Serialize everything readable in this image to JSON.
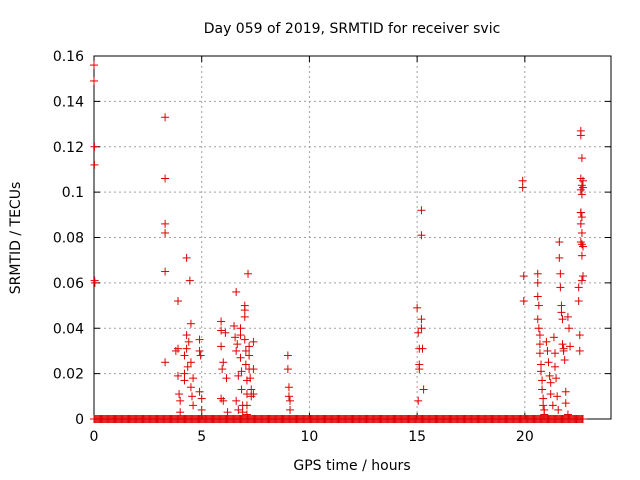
{
  "chart_data": {
    "type": "scatter",
    "title": "Day 059 of 2019, SRMTID for receiver svic",
    "xlabel": "GPS time / hours",
    "ylabel": "SRMTID / TECUs",
    "xlim": [
      0,
      24
    ],
    "ylim": [
      0,
      0.16
    ],
    "grid": true,
    "marker": "plus",
    "color": "#dd0000",
    "xticks": [
      "0",
      "5",
      "10",
      "15",
      "20"
    ],
    "yticks": [
      "0",
      "0.02",
      "0.04",
      "0.06",
      "0.08",
      "0.1",
      "0.12",
      "0.14",
      "0.16"
    ],
    "baseline": {
      "x_start": 0,
      "x_end": 22.7,
      "y": 0
    },
    "points": [
      [
        0.0,
        0.156
      ],
      [
        0.0,
        0.149
      ],
      [
        0.02,
        0.12
      ],
      [
        0.02,
        0.112
      ],
      [
        0.03,
        0.061
      ],
      [
        0.04,
        0.06
      ],
      [
        3.3,
        0.133
      ],
      [
        3.3,
        0.106
      ],
      [
        3.3,
        0.086
      ],
      [
        3.3,
        0.082
      ],
      [
        3.3,
        0.065
      ],
      [
        3.3,
        0.025
      ],
      [
        3.8,
        0.03
      ],
      [
        3.9,
        0.052
      ],
      [
        3.9,
        0.031
      ],
      [
        3.9,
        0.019
      ],
      [
        3.95,
        0.011
      ],
      [
        4.0,
        0.008
      ],
      [
        4.0,
        0.003
      ],
      [
        4.2,
        0.028
      ],
      [
        4.2,
        0.02
      ],
      [
        4.2,
        0.017
      ],
      [
        4.3,
        0.071
      ],
      [
        4.3,
        0.037
      ],
      [
        4.3,
        0.031
      ],
      [
        4.35,
        0.023
      ],
      [
        4.4,
        0.034
      ],
      [
        4.45,
        0.061
      ],
      [
        4.5,
        0.042
      ],
      [
        4.5,
        0.025
      ],
      [
        4.5,
        0.014
      ],
      [
        4.55,
        0.01
      ],
      [
        4.6,
        0.018
      ],
      [
        4.6,
        0.006
      ],
      [
        4.9,
        0.035
      ],
      [
        4.9,
        0.03
      ],
      [
        4.95,
        0.028
      ],
      [
        4.9,
        0.012
      ],
      [
        5.0,
        0.009
      ],
      [
        5.0,
        0.004
      ],
      [
        5.9,
        0.043
      ],
      [
        5.9,
        0.039
      ],
      [
        5.9,
        0.032
      ],
      [
        6.0,
        0.025
      ],
      [
        5.95,
        0.022
      ],
      [
        5.9,
        0.009
      ],
      [
        6.0,
        0.008
      ],
      [
        6.1,
        0.038
      ],
      [
        6.15,
        0.018
      ],
      [
        6.2,
        0.003
      ],
      [
        6.5,
        0.041
      ],
      [
        6.55,
        0.036
      ],
      [
        6.6,
        0.056
      ],
      [
        6.6,
        0.03
      ],
      [
        6.6,
        0.008
      ],
      [
        6.65,
        0.033
      ],
      [
        6.7,
        0.019
      ],
      [
        6.7,
        0.004
      ],
      [
        6.8,
        0.04
      ],
      [
        6.8,
        0.037
      ],
      [
        6.8,
        0.027
      ],
      [
        6.85,
        0.021
      ],
      [
        6.85,
        0.013
      ],
      [
        6.9,
        0.006
      ],
      [
        6.9,
        0.003
      ],
      [
        7.0,
        0.05
      ],
      [
        7.0,
        0.048
      ],
      [
        7.0,
        0.045
      ],
      [
        7.0,
        0.035
      ],
      [
        7.05,
        0.03
      ],
      [
        7.05,
        0.024
      ],
      [
        7.1,
        0.017
      ],
      [
        7.1,
        0.011
      ],
      [
        7.1,
        0.006
      ],
      [
        7.1,
        0.002
      ],
      [
        7.15,
        0.064
      ],
      [
        7.2,
        0.032
      ],
      [
        7.2,
        0.028
      ],
      [
        7.2,
        0.022
      ],
      [
        7.25,
        0.018
      ],
      [
        7.3,
        0.013
      ],
      [
        7.3,
        0.01
      ],
      [
        7.4,
        0.034
      ],
      [
        7.4,
        0.022
      ],
      [
        7.4,
        0.011
      ],
      [
        9.0,
        0.028
      ],
      [
        9.0,
        0.022
      ],
      [
        9.05,
        0.014
      ],
      [
        9.05,
        0.01
      ],
      [
        9.1,
        0.008
      ],
      [
        9.1,
        0.004
      ],
      [
        15.0,
        0.049
      ],
      [
        15.05,
        0.038
      ],
      [
        15.1,
        0.031
      ],
      [
        15.1,
        0.024
      ],
      [
        15.1,
        0.022
      ],
      [
        15.05,
        0.008
      ],
      [
        15.2,
        0.092
      ],
      [
        15.2,
        0.081
      ],
      [
        15.2,
        0.044
      ],
      [
        15.2,
        0.04
      ],
      [
        15.25,
        0.031
      ],
      [
        15.3,
        0.013
      ],
      [
        19.9,
        0.105
      ],
      [
        19.9,
        0.102
      ],
      [
        19.95,
        0.063
      ],
      [
        19.95,
        0.052
      ],
      [
        20.6,
        0.064
      ],
      [
        20.6,
        0.06
      ],
      [
        20.6,
        0.054
      ],
      [
        20.65,
        0.05
      ],
      [
        20.6,
        0.044
      ],
      [
        20.65,
        0.04
      ],
      [
        20.7,
        0.037
      ],
      [
        20.7,
        0.033
      ],
      [
        20.7,
        0.029
      ],
      [
        20.75,
        0.024
      ],
      [
        20.75,
        0.021
      ],
      [
        20.8,
        0.017
      ],
      [
        20.8,
        0.013
      ],
      [
        20.85,
        0.009
      ],
      [
        20.85,
        0.006
      ],
      [
        20.9,
        0.004
      ],
      [
        20.9,
        0.002
      ],
      [
        21.0,
        0.034
      ],
      [
        21.05,
        0.03
      ],
      [
        21.1,
        0.025
      ],
      [
        21.15,
        0.019
      ],
      [
        21.2,
        0.016
      ],
      [
        21.2,
        0.011
      ],
      [
        21.3,
        0.006
      ],
      [
        21.35,
        0.036
      ],
      [
        21.4,
        0.029
      ],
      [
        21.4,
        0.023
      ],
      [
        21.45,
        0.018
      ],
      [
        21.5,
        0.01
      ],
      [
        21.55,
        0.004
      ],
      [
        21.6,
        0.078
      ],
      [
        21.6,
        0.071
      ],
      [
        21.65,
        0.064
      ],
      [
        21.65,
        0.058
      ],
      [
        21.7,
        0.05
      ],
      [
        21.7,
        0.047
      ],
      [
        21.75,
        0.044
      ],
      [
        21.75,
        0.033
      ],
      [
        21.8,
        0.031
      ],
      [
        21.8,
        0.03
      ],
      [
        21.85,
        0.026
      ],
      [
        21.9,
        0.012
      ],
      [
        21.9,
        0.007
      ],
      [
        22.0,
        0.002
      ],
      [
        22.0,
        0.045
      ],
      [
        22.05,
        0.04
      ],
      [
        22.1,
        0.032
      ],
      [
        22.5,
        0.058
      ],
      [
        22.5,
        0.052
      ],
      [
        22.55,
        0.037
      ],
      [
        22.55,
        0.03
      ],
      [
        22.6,
        0.127
      ],
      [
        22.6,
        0.125
      ],
      [
        22.65,
        0.115
      ],
      [
        22.6,
        0.106
      ],
      [
        22.65,
        0.103
      ],
      [
        22.6,
        0.101
      ],
      [
        22.65,
        0.099
      ],
      [
        22.6,
        0.091
      ],
      [
        22.65,
        0.089
      ],
      [
        22.6,
        0.086
      ],
      [
        22.65,
        0.082
      ],
      [
        22.6,
        0.078
      ],
      [
        22.65,
        0.077
      ],
      [
        22.7,
        0.076
      ],
      [
        22.65,
        0.072
      ],
      [
        22.7,
        0.063
      ],
      [
        22.65,
        0.061
      ],
      [
        22.7,
        0.105
      ],
      [
        22.7,
        0.102
      ],
      [
        22.6,
        0.091
      ]
    ]
  }
}
